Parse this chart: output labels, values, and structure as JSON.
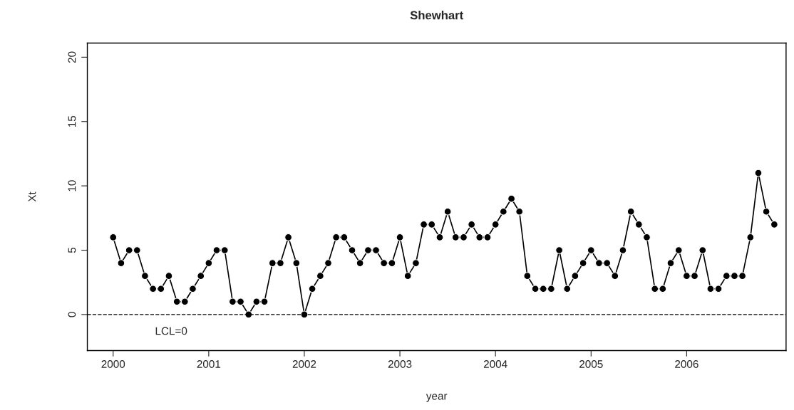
{
  "chart_data": {
    "type": "line",
    "title": "Shewhart",
    "xlabel": "year",
    "ylabel": "Xt",
    "x": [
      2000,
      2000.083,
      2000.167,
      2000.25,
      2000.333,
      2000.417,
      2000.5,
      2000.583,
      2000.667,
      2000.75,
      2000.833,
      2000.917,
      2001,
      2001.083,
      2001.167,
      2001.25,
      2001.333,
      2001.417,
      2001.5,
      2001.583,
      2001.667,
      2001.75,
      2001.833,
      2001.917,
      2002,
      2002.083,
      2002.167,
      2002.25,
      2002.333,
      2002.417,
      2002.5,
      2002.583,
      2002.667,
      2002.75,
      2002.833,
      2002.917,
      2003,
      2003.083,
      2003.167,
      2003.25,
      2003.333,
      2003.417,
      2003.5,
      2003.583,
      2003.667,
      2003.75,
      2003.833,
      2003.917,
      2004,
      2004.083,
      2004.167,
      2004.25,
      2004.333,
      2004.417,
      2004.5,
      2004.583,
      2004.667,
      2004.75,
      2004.833,
      2004.917,
      2005,
      2005.083,
      2005.167,
      2005.25,
      2005.333,
      2005.417,
      2005.5,
      2005.583,
      2005.667,
      2005.75,
      2005.833,
      2005.917,
      2006,
      2006.083,
      2006.167,
      2006.25,
      2006.333,
      2006.417,
      2006.5,
      2006.583,
      2006.667,
      2006.75,
      2006.833,
      2006.917
    ],
    "series": [
      {
        "color": "#000000",
        "values": [
          6,
          4,
          5,
          5,
          3,
          2,
          2,
          3,
          1,
          1,
          2,
          3,
          4,
          5,
          5,
          1,
          1,
          0,
          1,
          1,
          4,
          4,
          6,
          4,
          0,
          2,
          3,
          4,
          6,
          6,
          5,
          4,
          5,
          5,
          4,
          4,
          6,
          3,
          4,
          7,
          7,
          6,
          8,
          6,
          6,
          7,
          6,
          6,
          7,
          8,
          9,
          8,
          3,
          2,
          2,
          2,
          5,
          2,
          3,
          4,
          5,
          4,
          4,
          3,
          5,
          8,
          7,
          6,
          2,
          2,
          4,
          5,
          3,
          3,
          5,
          2,
          2,
          3,
          3,
          3,
          6,
          11,
          8,
          7
        ]
      }
    ],
    "xlim": [
      1999.73,
      2007.04
    ],
    "ylim": [
      -2.8,
      21.1
    ],
    "xticks": [
      2000,
      2001,
      2002,
      2003,
      2004,
      2005,
      2006
    ],
    "yticks": [
      0,
      5,
      10,
      15,
      20
    ],
    "ref_lines": [
      {
        "axis": "y",
        "value": 0,
        "label": "LCL=0",
        "color": "#000000",
        "line_style": "dashed"
      }
    ],
    "marker": "circle",
    "line_style": "solid",
    "grid": false,
    "legend": false
  }
}
